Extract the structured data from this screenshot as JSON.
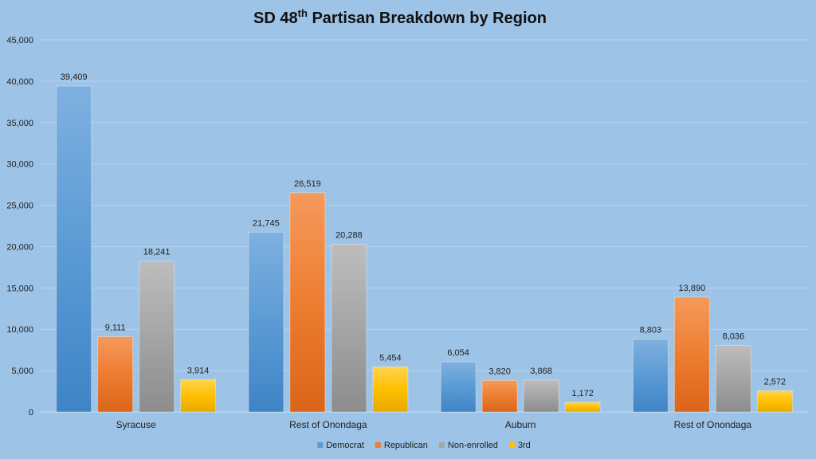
{
  "chart_data": {
    "type": "bar",
    "title_main": "SD 48",
    "title_sup": "th",
    "title_rest": " Partisan  Breakdown  by Region",
    "categories": [
      "Syracuse",
      "Rest of Onondaga",
      "Auburn",
      "Rest of Onondaga"
    ],
    "series": [
      {
        "name": "Democrat",
        "values": [
          39409,
          21745,
          6054,
          8803
        ],
        "labels": [
          "39,409",
          "21,745",
          "6,054",
          "8,803"
        ],
        "color": "#5b9bd5"
      },
      {
        "name": "Republican",
        "values": [
          9111,
          26519,
          3820,
          13890
        ],
        "labels": [
          "9,111",
          "26,519",
          "3,820",
          "13,890"
        ],
        "color": "#ed7d31"
      },
      {
        "name": "Non-enrolled",
        "values": [
          18241,
          20288,
          3868,
          8036
        ],
        "labels": [
          "18,241",
          "20,288",
          "3,868",
          "8,036"
        ],
        "color": "#a5a5a5"
      },
      {
        "name": "3rd",
        "values": [
          3914,
          5454,
          1172,
          2572
        ],
        "labels": [
          "3,914",
          "5,454",
          "1,172",
          "2,572"
        ],
        "color": "#ffc000"
      }
    ],
    "yticks": [
      "0",
      "5,000",
      "10,000",
      "15,000",
      "20,000",
      "25,000",
      "30,000",
      "35,000",
      "40,000",
      "45,000"
    ],
    "ylim": [
      0,
      45000
    ],
    "grid": true,
    "legend": "bottom"
  }
}
